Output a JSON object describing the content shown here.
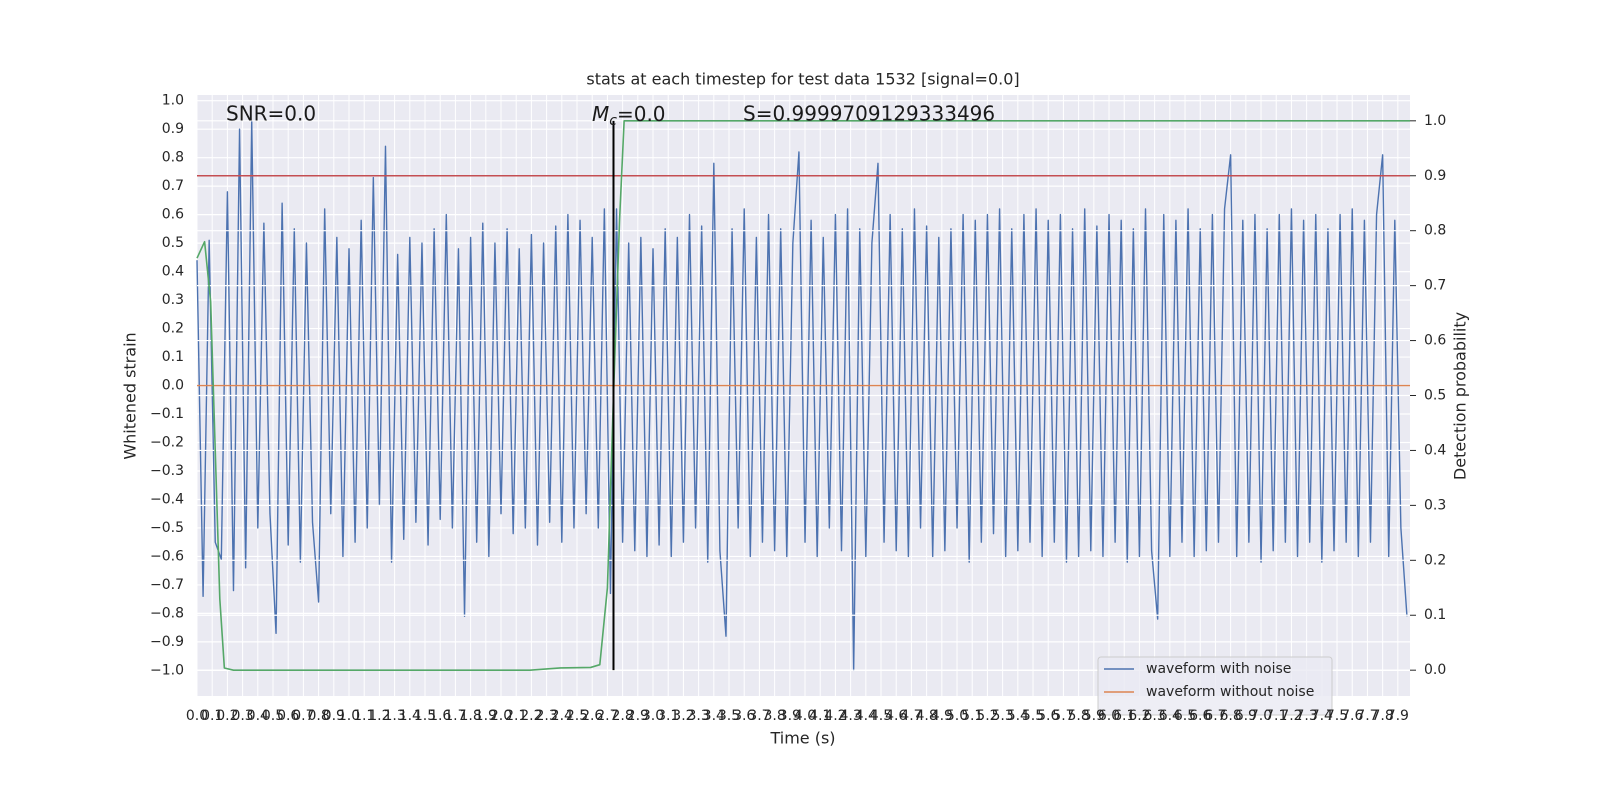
{
  "chart_data": {
    "type": "line",
    "title": "stats at each timestep for test data 1532 [signal=0.0]",
    "xlabel": "Time (s)",
    "ylabel": "Whitened strain",
    "y2label": "Detection probability",
    "xlim": [
      0,
      7.98
    ],
    "ylim": [
      -1.09,
      1.02
    ],
    "y2lim": [
      -0.047,
      1.047
    ],
    "grid": true,
    "legend": "lower right",
    "xticks": [
      {
        "value": 0,
        "label": "0.0"
      },
      0.1,
      0.2,
      0.3,
      0.4,
      0.5,
      0.6,
      0.7,
      0.8,
      0.9,
      {
        "value": 1,
        "label": "1.0"
      },
      1.1,
      1.2,
      1.3,
      1.4,
      1.5,
      1.6,
      1.7,
      1.8,
      1.9,
      {
        "value": 2,
        "label": "2.0"
      },
      2.1,
      2.2,
      2.3,
      2.4,
      2.5,
      2.6,
      2.7,
      2.8,
      2.9,
      {
        "value": 3,
        "label": "3.0"
      },
      3.1,
      3.2,
      3.3,
      3.4,
      3.5,
      3.6,
      3.7,
      3.8,
      3.9,
      {
        "value": 4,
        "label": "4.0"
      },
      4.1,
      4.2,
      4.3,
      4.4,
      4.5,
      4.6,
      4.7,
      4.8,
      4.9,
      {
        "value": 5,
        "label": "5.0"
      },
      5.1,
      5.2,
      5.3,
      5.4,
      5.5,
      5.6,
      5.7,
      5.8,
      5.9,
      {
        "value": 6,
        "label": "6.0"
      },
      6.1,
      6.2,
      6.3,
      6.4,
      6.5,
      6.6,
      6.7,
      6.8,
      6.9,
      {
        "value": 7,
        "label": "7.0"
      },
      7.1,
      7.2,
      7.3,
      7.4,
      7.5,
      7.6,
      7.7,
      7.8,
      7.9
    ],
    "yticks": [
      {
        "value": -1,
        "label": "−1.0"
      },
      {
        "value": -0.9,
        "label": "−0.9"
      },
      {
        "value": -0.8,
        "label": "−0.8"
      },
      {
        "value": -0.7,
        "label": "−0.7"
      },
      {
        "value": -0.6,
        "label": "−0.6"
      },
      {
        "value": -0.5,
        "label": "−0.5"
      },
      {
        "value": -0.4,
        "label": "−0.4"
      },
      {
        "value": -0.3,
        "label": "−0.3"
      },
      {
        "value": -0.2,
        "label": "−0.2"
      },
      {
        "value": -0.1,
        "label": "−0.1"
      },
      {
        "value": 0,
        "label": "0.0"
      },
      0.1,
      0.2,
      0.3,
      0.4,
      0.5,
      0.6,
      0.7,
      0.8,
      0.9,
      {
        "value": 1,
        "label": "1.0"
      }
    ],
    "y2ticks": [
      {
        "value": 0,
        "label": "0.0"
      },
      0.1,
      0.2,
      0.3,
      0.4,
      0.5,
      0.6,
      0.7,
      0.8,
      0.9,
      {
        "value": 1,
        "label": "1.0"
      }
    ],
    "series": [
      {
        "name": "waveform with noise",
        "color": "#4c72b0",
        "x": [
          0.0,
          0.04,
          0.08,
          0.12,
          0.16,
          0.2,
          0.24,
          0.28,
          0.32,
          0.36,
          0.4,
          0.44,
          0.48,
          0.52,
          0.56,
          0.6,
          0.64,
          0.68,
          0.72,
          0.76,
          0.8,
          0.84,
          0.88,
          0.92,
          0.96,
          1.0,
          1.04,
          1.08,
          1.12,
          1.16,
          1.2,
          1.24,
          1.28,
          1.32,
          1.36,
          1.4,
          1.44,
          1.48,
          1.52,
          1.56,
          1.6,
          1.64,
          1.68,
          1.72,
          1.76,
          1.8,
          1.84,
          1.88,
          1.92,
          1.96,
          2.0,
          2.04,
          2.08,
          2.12,
          2.16,
          2.2,
          2.24,
          2.28,
          2.32,
          2.36,
          2.4,
          2.44,
          2.48,
          2.52,
          2.56,
          2.6,
          2.64,
          2.68,
          2.72,
          2.76,
          2.8,
          2.84,
          2.88,
          2.92,
          2.96,
          3.0,
          3.04,
          3.08,
          3.12,
          3.16,
          3.2,
          3.24,
          3.28,
          3.32,
          3.36,
          3.4,
          3.44,
          3.48,
          3.52,
          3.56,
          3.6,
          3.64,
          3.68,
          3.72,
          3.76,
          3.8,
          3.84,
          3.88,
          3.92,
          3.96,
          4.0,
          4.04,
          4.08,
          4.12,
          4.16,
          4.2,
          4.24,
          4.28,
          4.32,
          4.36,
          4.4,
          4.44,
          4.48,
          4.52,
          4.56,
          4.6,
          4.64,
          4.68,
          4.72,
          4.76,
          4.8,
          4.84,
          4.88,
          4.92,
          4.96,
          5.0,
          5.04,
          5.08,
          5.12,
          5.16,
          5.2,
          5.24,
          5.28,
          5.32,
          5.36,
          5.4,
          5.44,
          5.48,
          5.52,
          5.56,
          5.6,
          5.64,
          5.68,
          5.72,
          5.76,
          5.8,
          5.84,
          5.88,
          5.92,
          5.96,
          6.0,
          6.04,
          6.08,
          6.12,
          6.16,
          6.2,
          6.24,
          6.28,
          6.32,
          6.36,
          6.4,
          6.44,
          6.48,
          6.52,
          6.56,
          6.6,
          6.64,
          6.68,
          6.72,
          6.76,
          6.8,
          6.84,
          6.88,
          6.92,
          6.96,
          7.0,
          7.04,
          7.08,
          7.12,
          7.16,
          7.2,
          7.24,
          7.28,
          7.32,
          7.36,
          7.4,
          7.44,
          7.48,
          7.52,
          7.56,
          7.6,
          7.64,
          7.68,
          7.72,
          7.76,
          7.8,
          7.84,
          7.88,
          7.92,
          7.96
        ],
        "values": [
          0.44,
          -0.74,
          0.51,
          -0.55,
          -0.61,
          0.68,
          -0.72,
          0.9,
          -0.64,
          0.93,
          -0.5,
          0.57,
          -0.45,
          -0.87,
          0.64,
          -0.56,
          0.55,
          -0.62,
          0.5,
          -0.48,
          -0.76,
          0.62,
          -0.45,
          0.52,
          -0.6,
          0.48,
          -0.55,
          0.58,
          -0.5,
          0.73,
          -0.42,
          0.84,
          -0.62,
          0.46,
          -0.54,
          0.52,
          -0.48,
          0.5,
          -0.56,
          0.55,
          -0.47,
          0.6,
          -0.5,
          0.48,
          -0.81,
          0.52,
          -0.55,
          0.57,
          -0.6,
          0.5,
          -0.45,
          0.55,
          -0.52,
          0.48,
          -0.5,
          0.53,
          -0.56,
          0.5,
          -0.48,
          0.56,
          -0.55,
          0.6,
          -0.5,
          0.58,
          -0.45,
          0.52,
          -0.5,
          0.62,
          -0.73,
          0.62,
          -0.55,
          0.5,
          -0.58,
          0.52,
          -0.6,
          0.48,
          -0.56,
          0.55,
          -0.6,
          0.52,
          -0.55,
          0.6,
          -0.5,
          0.56,
          -0.62,
          0.78,
          -0.58,
          -0.88,
          0.55,
          -0.5,
          0.62,
          -0.6,
          0.52,
          -0.55,
          0.6,
          -0.58,
          0.55,
          -0.6,
          0.5,
          0.82,
          -0.55,
          0.58,
          -0.6,
          0.52,
          -0.5,
          0.6,
          -0.58,
          0.62,
          -1.0,
          0.55,
          -0.6,
          0.5,
          0.78,
          -0.55,
          0.6,
          -0.58,
          0.55,
          -0.6,
          0.62,
          -0.5,
          0.56,
          -0.6,
          0.52,
          -0.58,
          0.55,
          -0.5,
          0.6,
          -0.62,
          0.58,
          -0.55,
          0.6,
          -0.52,
          0.62,
          -0.6,
          0.55,
          -0.58,
          0.6,
          -0.55,
          0.62,
          -0.6,
          0.58,
          -0.55,
          0.6,
          -0.62,
          0.55,
          -0.6,
          0.62,
          -0.58,
          0.56,
          -0.6,
          0.6,
          -0.55,
          0.58,
          -0.62,
          0.55,
          -0.6,
          0.62,
          -0.58,
          -0.82,
          0.6,
          -0.6,
          0.58,
          -0.55,
          0.62,
          -0.6,
          0.55,
          -0.58,
          0.6,
          -0.55,
          0.62,
          0.81,
          -0.6,
          0.58,
          -0.55,
          0.6,
          -0.62,
          0.55,
          -0.58,
          0.6,
          -0.55,
          0.62,
          -0.6,
          0.58,
          -0.55,
          0.6,
          -0.62,
          0.55,
          -0.58,
          0.6,
          -0.55,
          0.62,
          -0.6,
          0.58,
          -0.55,
          0.6,
          0.81,
          -0.6,
          0.58,
          -0.5,
          -0.81
        ]
      },
      {
        "name": "waveform without noise",
        "color": "#dd8452",
        "x": [
          0,
          7.98
        ],
        "values": [
          0,
          0
        ]
      },
      {
        "color": "#55a868",
        "axis": "y2",
        "x": [
          0,
          0.05,
          0.09,
          0.12,
          0.15,
          0.18,
          0.24,
          2.19,
          2.39,
          2.59,
          2.65,
          2.7,
          2.74,
          2.78,
          2.81,
          7.98
        ],
        "values": [
          0.75,
          0.78,
          0.67,
          0.4,
          0.13,
          0.004,
          0,
          0,
          0.004,
          0.005,
          0.01,
          0.15,
          0.5,
          0.82,
          1.0,
          1.0
        ]
      }
    ],
    "hlines": [
      {
        "y": 0.9,
        "axis": "y2",
        "color": "#c44e52"
      }
    ],
    "vlines": [
      {
        "x": 2.74,
        "ymin": 0,
        "ymax": 1,
        "axis": "y2",
        "color": "#000000"
      }
    ],
    "annotations": [
      {
        "text": "SNR=0.0"
      },
      {
        "parts": [
          "M",
          "c",
          "=0.0"
        ]
      },
      {
        "text": "S=0.9999709129333496"
      }
    ]
  }
}
